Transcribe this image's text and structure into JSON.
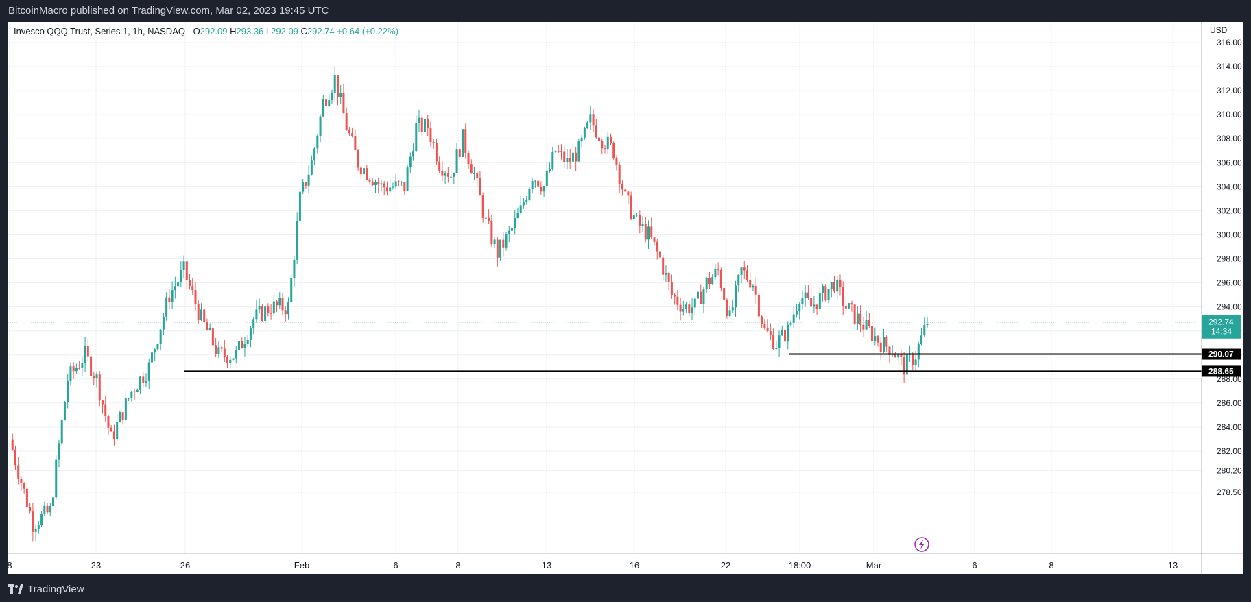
{
  "header": {
    "published": "BitcoinMacro published on TradingView.com, Mar 02, 2023 19:45 UTC"
  },
  "legend": {
    "symbol": "Invesco QQQ Trust, Series 1, 1h, NASDAQ",
    "open": "O292.09",
    "high": "H293.36",
    "low": "L292.09",
    "close": "C292.74",
    "change": "+0.64 (+0.22%)"
  },
  "footer": {
    "brand": "TradingView"
  },
  "colors": {
    "up": "#26a69a",
    "down": "#ef5350",
    "grid": "#eef1f4",
    "current_label": "#26a69a"
  },
  "chart_data": {
    "type": "candlestick",
    "currency": "USD",
    "y_axis_ticks": [
      "316.00",
      "314.00",
      "312.00",
      "310.00",
      "308.00",
      "306.00",
      "304.00",
      "302.00",
      "300.00",
      "298.00",
      "296.00",
      "294.00",
      "292.00",
      "290.00",
      "288.00",
      "286.00",
      "284.00",
      "282.00",
      "280.20",
      "278.50"
    ],
    "x_axis_ticks": [
      "8",
      "23",
      "26",
      "Feb",
      "6",
      "8",
      "13",
      "16",
      "22",
      "18:00",
      "Mar",
      "6",
      "8",
      "13"
    ],
    "current_price": {
      "value": "292.74",
      "countdown": "14:34"
    },
    "horizontal_levels": [
      {
        "value": "290.07"
      },
      {
        "value": "288.65"
      }
    ],
    "price_path": [
      {
        "t": 0,
        "p": 283
      },
      {
        "t": 8,
        "p": 276
      },
      {
        "t": 14,
        "p": 277
      },
      {
        "t": 20,
        "p": 288
      },
      {
        "t": 26,
        "p": 290
      },
      {
        "t": 30,
        "p": 288
      },
      {
        "t": 35,
        "p": 283
      },
      {
        "t": 42,
        "p": 287
      },
      {
        "t": 48,
        "p": 289
      },
      {
        "t": 55,
        "p": 295
      },
      {
        "t": 60,
        "p": 297
      },
      {
        "t": 66,
        "p": 293
      },
      {
        "t": 72,
        "p": 290
      },
      {
        "t": 78,
        "p": 290
      },
      {
        "t": 84,
        "p": 293
      },
      {
        "t": 90,
        "p": 294
      },
      {
        "t": 96,
        "p": 294
      },
      {
        "t": 100,
        "p": 303
      },
      {
        "t": 104,
        "p": 306
      },
      {
        "t": 108,
        "p": 311
      },
      {
        "t": 112,
        "p": 313
      },
      {
        "t": 116,
        "p": 309
      },
      {
        "t": 120,
        "p": 306
      },
      {
        "t": 124,
        "p": 305
      },
      {
        "t": 128,
        "p": 304
      },
      {
        "t": 132,
        "p": 304
      },
      {
        "t": 136,
        "p": 304
      },
      {
        "t": 140,
        "p": 309
      },
      {
        "t": 144,
        "p": 309
      },
      {
        "t": 148,
        "p": 306
      },
      {
        "t": 152,
        "p": 305
      },
      {
        "t": 156,
        "p": 308
      },
      {
        "t": 160,
        "p": 305
      },
      {
        "t": 164,
        "p": 301
      },
      {
        "t": 168,
        "p": 298.5
      },
      {
        "t": 172,
        "p": 300
      },
      {
        "t": 176,
        "p": 302
      },
      {
        "t": 180,
        "p": 305
      },
      {
        "t": 184,
        "p": 304
      },
      {
        "t": 188,
        "p": 307
      },
      {
        "t": 192,
        "p": 306
      },
      {
        "t": 196,
        "p": 307
      },
      {
        "t": 200,
        "p": 309.5
      },
      {
        "t": 204,
        "p": 308
      },
      {
        "t": 208,
        "p": 307
      },
      {
        "t": 212,
        "p": 303
      },
      {
        "t": 216,
        "p": 301
      },
      {
        "t": 220,
        "p": 300
      },
      {
        "t": 224,
        "p": 298
      },
      {
        "t": 228,
        "p": 295
      },
      {
        "t": 232,
        "p": 294
      },
      {
        "t": 236,
        "p": 294
      },
      {
        "t": 240,
        "p": 296
      },
      {
        "t": 244,
        "p": 297
      },
      {
        "t": 248,
        "p": 293
      },
      {
        "t": 252,
        "p": 297
      },
      {
        "t": 256,
        "p": 296
      },
      {
        "t": 260,
        "p": 292
      },
      {
        "t": 264,
        "p": 291
      },
      {
        "t": 268,
        "p": 292
      },
      {
        "t": 272,
        "p": 295
      },
      {
        "t": 276,
        "p": 294
      },
      {
        "t": 280,
        "p": 295
      },
      {
        "t": 284,
        "p": 296
      },
      {
        "t": 288,
        "p": 294
      },
      {
        "t": 292,
        "p": 293
      },
      {
        "t": 296,
        "p": 292
      },
      {
        "t": 300,
        "p": 291
      },
      {
        "t": 304,
        "p": 290.5
      },
      {
        "t": 308,
        "p": 289
      },
      {
        "t": 312,
        "p": 290
      },
      {
        "t": 316,
        "p": 292.74
      }
    ]
  }
}
